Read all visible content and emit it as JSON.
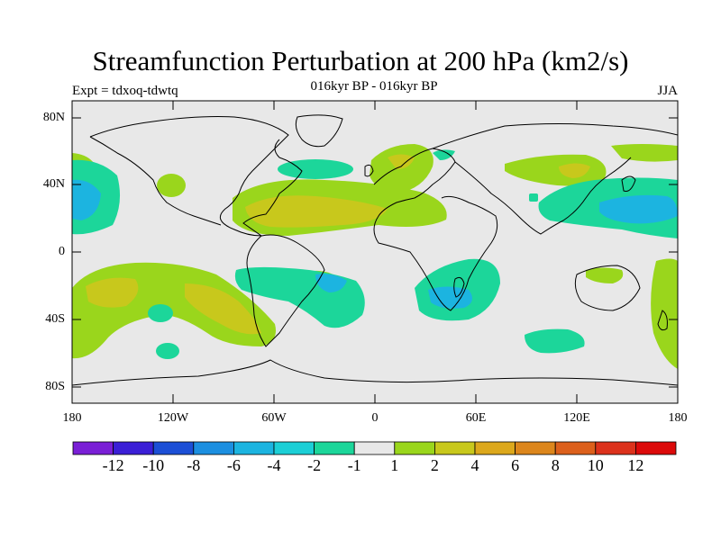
{
  "title": "Streamfunction Perturbation at 200 hPa (km2/s)",
  "subtitle": "016kyr BP - 016kyr BP",
  "left_label": "Expt = tdxoq-tdwtq",
  "right_label": "JJA",
  "lat_labels": [
    "80N",
    "40N",
    "0",
    "40S",
    "80S"
  ],
  "lon_labels": [
    "180",
    "120W",
    "60W",
    "0",
    "60E",
    "120E",
    "180"
  ],
  "colorbar": {
    "colors": [
      "#7a1fd6",
      "#3b1fd6",
      "#1c4fd6",
      "#1c8fe0",
      "#1cb4e0",
      "#1ccfd6",
      "#1cd69a",
      "#e8e8e8",
      "#9ad61c",
      "#c8c81c",
      "#dca81c",
      "#dc861c",
      "#dc601c",
      "#dc321c",
      "#dc0a0a"
    ],
    "labels": [
      "-12",
      "-10",
      "-8",
      "-6",
      "-4",
      "-2",
      "-1",
      "1",
      "2",
      "4",
      "6",
      "8",
      "10",
      "12"
    ]
  },
  "map": {
    "background": "#e8e8e8",
    "legend_colors": {
      "lt_green": "#9ad61c",
      "olive": "#c8c81c",
      "teal": "#1cd69a",
      "cyan": "#1ccfd6",
      "blue": "#1cb4e0"
    }
  }
}
